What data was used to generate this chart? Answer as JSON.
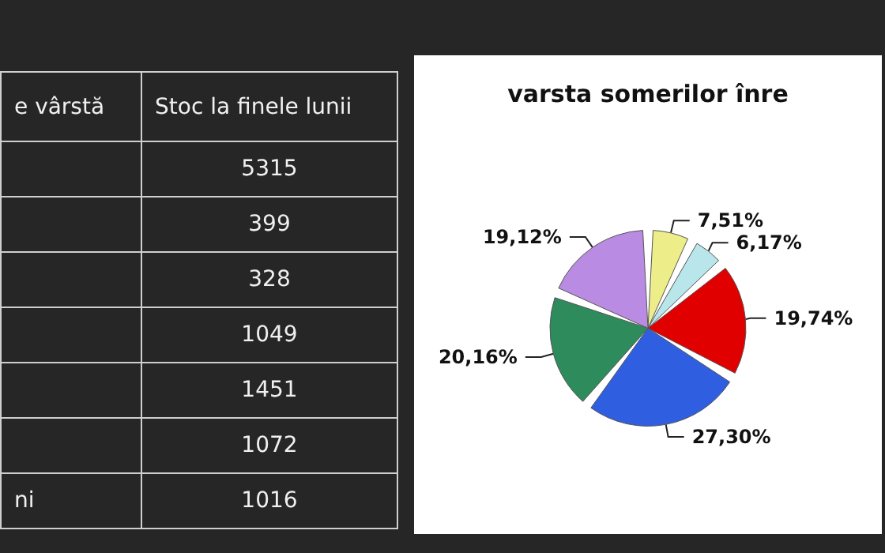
{
  "chart_data": [
    {
      "type": "other",
      "annotations": [
        "e vârstă",
        "Stoc la finele lunii"
      ],
      "categories": [
        null,
        null,
        null,
        null,
        null,
        null,
        "ni"
      ],
      "values": [
        5315,
        399,
        328,
        1049,
        1451,
        1072,
        1016
      ],
      "data_labels": true
    },
    {
      "type": "pie",
      "title": "varsta somerilor înre",
      "categories": [
        null,
        null,
        null,
        null,
        null,
        null
      ],
      "values": [
        7.51,
        6.17,
        19.74,
        27.3,
        20.16,
        19.12
      ],
      "value_labels": [
        "7,51%",
        "6,17%",
        "19,74%",
        "27,30%",
        "20,16%",
        "19,12%"
      ],
      "colors": [
        "#eded8a",
        "#b9e6ea",
        "#e00000",
        "#2f5fe0",
        "#2e8b5c",
        "#b98be2"
      ]
    }
  ]
}
